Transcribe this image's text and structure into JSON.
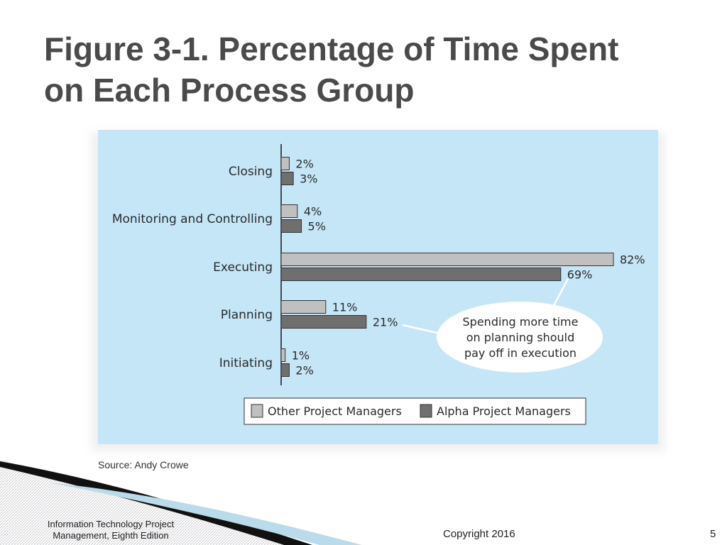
{
  "slide": {
    "title_line1": "Figure 3-1. Percentage of Time Spent",
    "title_line2": "on Each Process Group",
    "source": "Source: Andy Crowe",
    "footer_left_line1": "Information Technology Project",
    "footer_left_line2": "Management, Eighth Edition",
    "footer_center": "Copyright 2016",
    "page_number": "5"
  },
  "chart_data": {
    "type": "bar",
    "orientation": "horizontal",
    "categories": [
      "Closing",
      "Monitoring and Controlling",
      "Executing",
      "Planning",
      "Initiating"
    ],
    "series": [
      {
        "name": "Other Project Managers",
        "values": [
          2,
          4,
          82,
          11,
          1
        ],
        "labels": [
          "2%",
          "4%",
          "82%",
          "11%",
          "1%"
        ],
        "color": "#c0c0c0"
      },
      {
        "name": "Alpha Project Managers",
        "values": [
          3,
          5,
          69,
          21,
          2
        ],
        "labels": [
          "3%",
          "5%",
          "69%",
          "21%",
          "2%"
        ],
        "color": "#6f6f6f"
      }
    ],
    "xlim": [
      0,
      100
    ],
    "grid": false,
    "legend_position": "bottom",
    "annotation": {
      "lines": [
        "Spending more time",
        "on planning should",
        "pay off in execution"
      ]
    },
    "colors": {
      "panel": "#c5e6f7",
      "bar_outline": "#333333"
    }
  }
}
